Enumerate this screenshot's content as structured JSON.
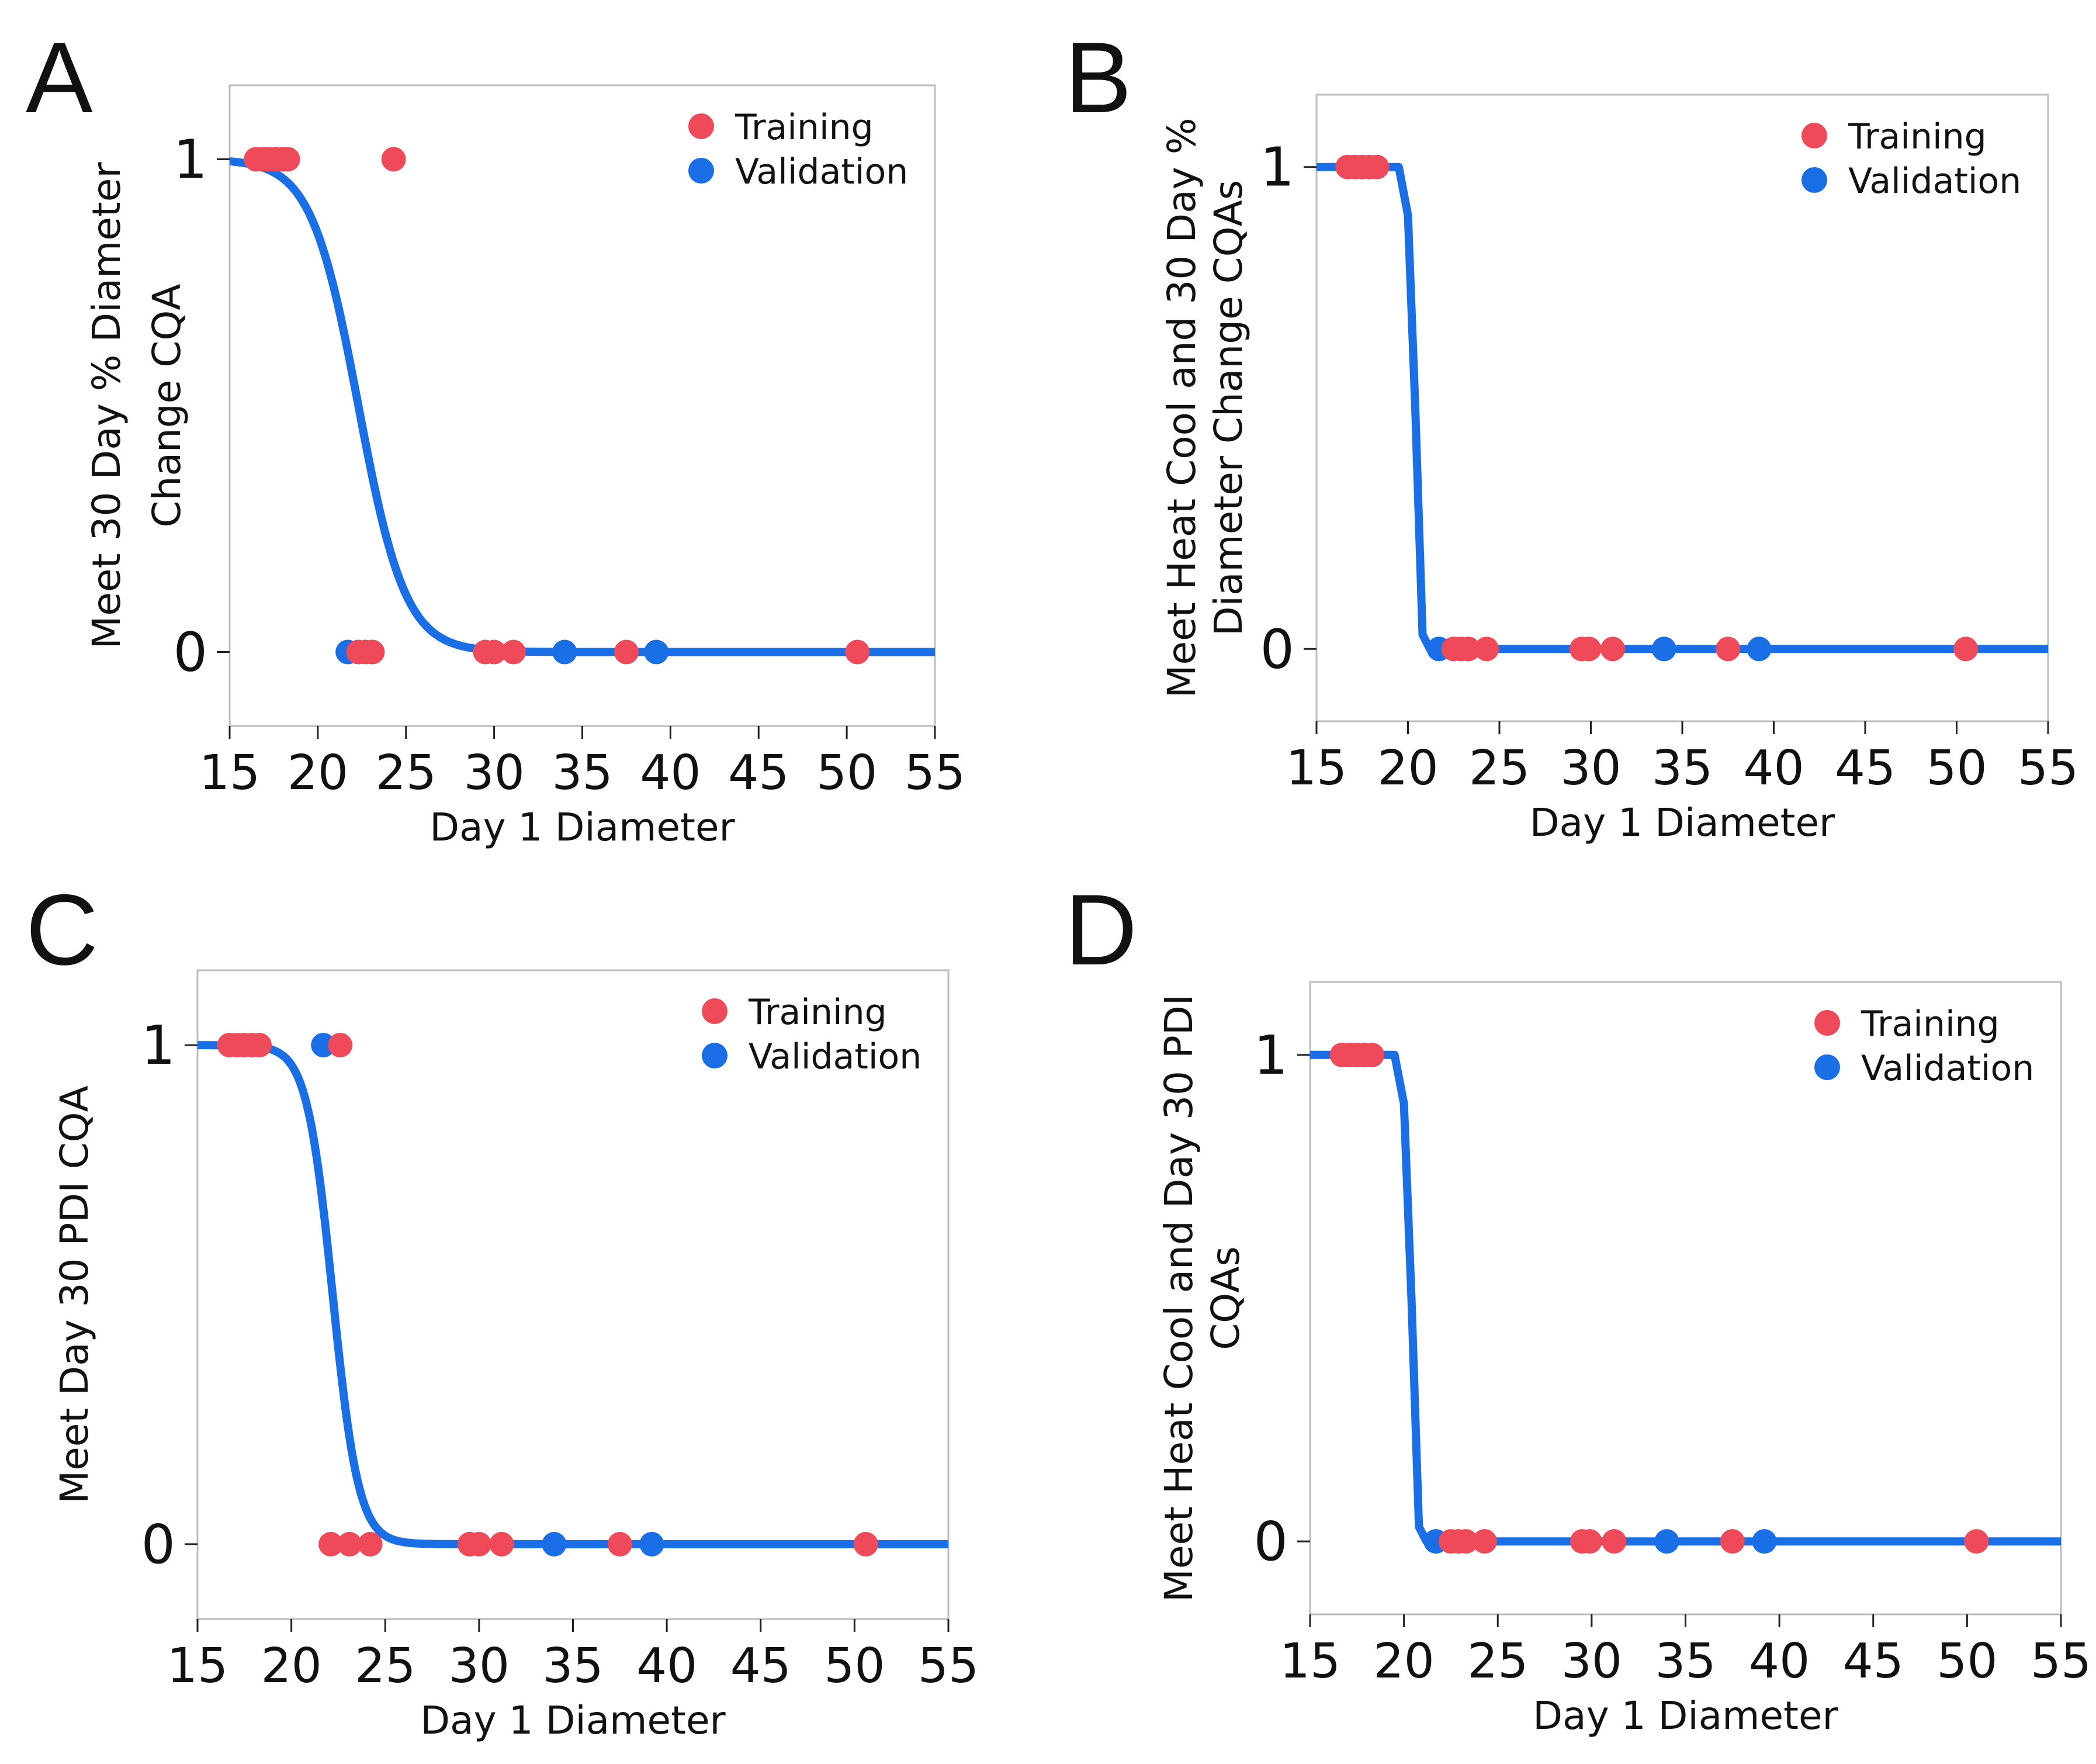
{
  "colors": {
    "training": "#ee4a5a",
    "validation": "#1a6ee6",
    "fit_line": "#1a6ee6",
    "frame": "#bcbcbc",
    "text": "#111111"
  },
  "chart_data": [
    {
      "type": "scatter",
      "panel": "A",
      "xlabel": "Day 1 Diameter",
      "ylabel": [
        "Meet 30 Day % Diameter",
        "Change CQA"
      ],
      "xlim": [
        15,
        55
      ],
      "ylim": [
        -0.15,
        1.15
      ],
      "xticks": [
        15,
        20,
        25,
        30,
        35,
        40,
        45,
        50,
        55
      ],
      "yticks": [
        0,
        1
      ],
      "curve": "logistic",
      "curve_midpoint": 22.3,
      "curve_steepness": 0.75,
      "legend": {
        "placement": "top-right",
        "entries": [
          "Training",
          "Validation"
        ]
      },
      "series": [
        {
          "name": "Training",
          "points": [
            [
              16.5,
              1
            ],
            [
              16.9,
              1
            ],
            [
              17.2,
              1
            ],
            [
              17.6,
              1
            ],
            [
              18.0,
              1
            ],
            [
              18.3,
              1
            ],
            [
              24.3,
              1
            ],
            [
              22.3,
              0
            ],
            [
              22.7,
              0
            ],
            [
              23.1,
              0
            ],
            [
              29.5,
              0
            ],
            [
              30.0,
              0
            ],
            [
              31.1,
              0
            ],
            [
              37.5,
              0
            ],
            [
              50.6,
              0
            ]
          ]
        },
        {
          "name": "Validation",
          "points": [
            [
              21.7,
              0
            ],
            [
              34.0,
              0
            ],
            [
              39.2,
              0
            ]
          ]
        }
      ]
    },
    {
      "type": "scatter",
      "panel": "B",
      "xlabel": "Day 1 Diameter",
      "ylabel": [
        "Meet Heat Cool and 30 Day %",
        "Diameter Change CQAs"
      ],
      "xlim": [
        15,
        55
      ],
      "ylim": [
        -0.15,
        1.15
      ],
      "xticks": [
        15,
        20,
        25,
        30,
        35,
        40,
        45,
        50,
        55
      ],
      "yticks": [
        0,
        1
      ],
      "curve": "step",
      "curve_points": [
        [
          15,
          1
        ],
        [
          19.5,
          1
        ],
        [
          20.0,
          0.9
        ],
        [
          20.4,
          0.5
        ],
        [
          20.8,
          0.03
        ],
        [
          21.2,
          0
        ],
        [
          55,
          0
        ]
      ],
      "legend": {
        "placement": "top-right",
        "entries": [
          "Training",
          "Validation"
        ]
      },
      "series": [
        {
          "name": "Training",
          "points": [
            [
              16.7,
              1
            ],
            [
              17.1,
              1
            ],
            [
              17.5,
              1
            ],
            [
              17.9,
              1
            ],
            [
              18.3,
              1
            ],
            [
              22.5,
              0
            ],
            [
              22.9,
              0
            ],
            [
              23.3,
              0
            ],
            [
              24.3,
              0
            ],
            [
              29.5,
              0
            ],
            [
              29.9,
              0
            ],
            [
              31.2,
              0
            ],
            [
              37.5,
              0
            ],
            [
              50.5,
              0
            ]
          ]
        },
        {
          "name": "Validation",
          "points": [
            [
              21.7,
              0
            ],
            [
              34.0,
              0
            ],
            [
              39.2,
              0
            ]
          ]
        }
      ]
    },
    {
      "type": "scatter",
      "panel": "C",
      "xlabel": "Day 1 Diameter",
      "ylabel": [
        "Meet Day 30 PDI CQA"
      ],
      "xlim": [
        15,
        55
      ],
      "ylim": [
        -0.15,
        1.15
      ],
      "xticks": [
        15,
        20,
        25,
        30,
        35,
        40,
        45,
        50,
        55
      ],
      "yticks": [
        0,
        1
      ],
      "curve": "logistic",
      "curve_midpoint": 22.2,
      "curve_steepness": 1.45,
      "legend": {
        "placement": "top-right",
        "entries": [
          "Training",
          "Validation"
        ]
      },
      "series": [
        {
          "name": "Training",
          "points": [
            [
              16.7,
              1
            ],
            [
              17.1,
              1
            ],
            [
              17.5,
              1
            ],
            [
              17.9,
              1
            ],
            [
              18.3,
              1
            ],
            [
              22.6,
              1
            ],
            [
              22.1,
              0
            ],
            [
              23.1,
              0
            ],
            [
              24.2,
              0
            ],
            [
              29.5,
              0
            ],
            [
              30.0,
              0
            ],
            [
              31.2,
              0
            ],
            [
              37.5,
              0
            ],
            [
              50.6,
              0
            ]
          ]
        },
        {
          "name": "Validation",
          "points": [
            [
              21.7,
              1
            ],
            [
              34.0,
              0
            ],
            [
              39.2,
              0
            ]
          ]
        }
      ]
    },
    {
      "type": "scatter",
      "panel": "D",
      "xlabel": "Day 1 Diameter",
      "ylabel": [
        "Meet Heat Cool and Day 30 PDI",
        "CQAs"
      ],
      "xlim": [
        15,
        55
      ],
      "ylim": [
        -0.15,
        1.15
      ],
      "xticks": [
        15,
        20,
        25,
        30,
        35,
        40,
        45,
        50,
        55
      ],
      "yticks": [
        0,
        1
      ],
      "curve": "step",
      "curve_points": [
        [
          15,
          1
        ],
        [
          19.5,
          1
        ],
        [
          20.0,
          0.9
        ],
        [
          20.4,
          0.5
        ],
        [
          20.8,
          0.03
        ],
        [
          21.2,
          0
        ],
        [
          55,
          0
        ]
      ],
      "legend": {
        "placement": "top-right",
        "entries": [
          "Training",
          "Validation"
        ]
      },
      "series": [
        {
          "name": "Training",
          "points": [
            [
              16.7,
              1
            ],
            [
              17.1,
              1
            ],
            [
              17.5,
              1
            ],
            [
              17.9,
              1
            ],
            [
              18.3,
              1
            ],
            [
              22.5,
              0
            ],
            [
              22.9,
              0
            ],
            [
              23.3,
              0
            ],
            [
              24.3,
              0
            ],
            [
              29.5,
              0
            ],
            [
              29.9,
              0
            ],
            [
              31.2,
              0
            ],
            [
              37.5,
              0
            ],
            [
              50.5,
              0
            ]
          ]
        },
        {
          "name": "Validation",
          "points": [
            [
              21.7,
              0
            ],
            [
              34.0,
              0
            ],
            [
              39.2,
              0
            ]
          ]
        }
      ]
    }
  ]
}
